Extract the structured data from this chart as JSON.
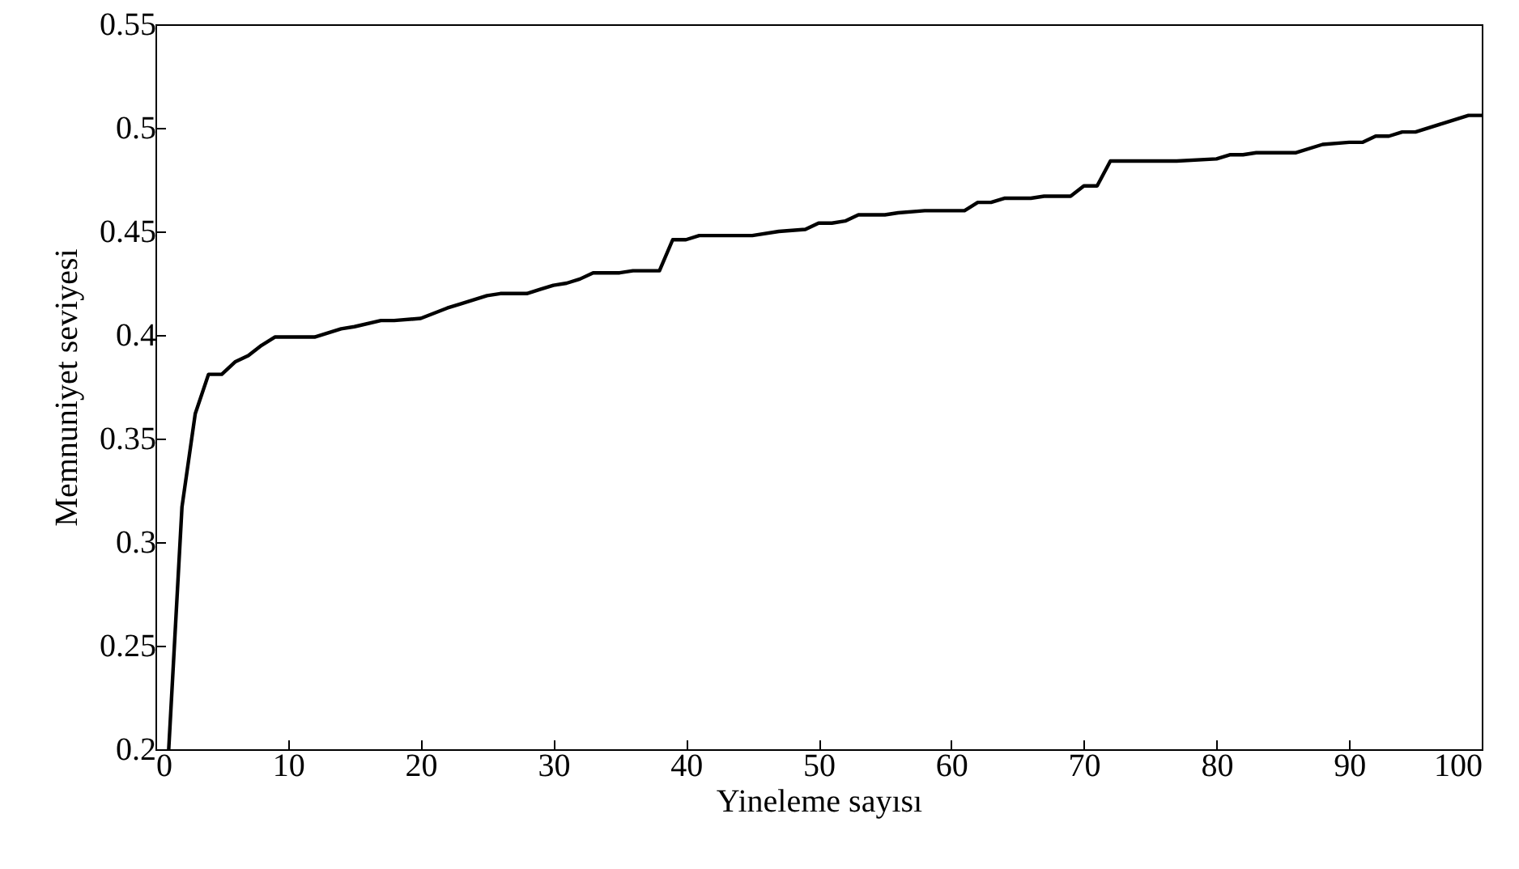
{
  "chart_data": {
    "type": "line",
    "xlabel": "Yineleme sayısı",
    "ylabel": "Memnuniyet seviyesi",
    "x": [
      1,
      2,
      3,
      4,
      5,
      6,
      7,
      8,
      9,
      10,
      12,
      14,
      15,
      17,
      18,
      20,
      22,
      23,
      25,
      26,
      28,
      29,
      30,
      31,
      32,
      33,
      35,
      36,
      38,
      39,
      40,
      41,
      43,
      45,
      47,
      49,
      50,
      51,
      52,
      53,
      55,
      56,
      58,
      61,
      62,
      63,
      64,
      66,
      67,
      69,
      70,
      71,
      72,
      77,
      80,
      81,
      82,
      83,
      86,
      88,
      90,
      91,
      92,
      93,
      94,
      95,
      97,
      99,
      100
    ],
    "series": [
      {
        "color": "#000000",
        "values": [
          0.2,
          0.317,
          0.362,
          0.381,
          0.381,
          0.387,
          0.39,
          0.395,
          0.399,
          0.399,
          0.399,
          0.403,
          0.404,
          0.407,
          0.407,
          0.408,
          0.413,
          0.415,
          0.419,
          0.42,
          0.42,
          0.422,
          0.424,
          0.425,
          0.427,
          0.43,
          0.43,
          0.431,
          0.431,
          0.446,
          0.446,
          0.448,
          0.448,
          0.448,
          0.45,
          0.451,
          0.454,
          0.454,
          0.455,
          0.458,
          0.458,
          0.459,
          0.46,
          0.46,
          0.464,
          0.464,
          0.466,
          0.466,
          0.467,
          0.467,
          0.472,
          0.472,
          0.484,
          0.484,
          0.485,
          0.487,
          0.487,
          0.488,
          0.488,
          0.492,
          0.493,
          0.493,
          0.496,
          0.496,
          0.498,
          0.498,
          0.502,
          0.506,
          0.506
        ]
      }
    ],
    "xlim": [
      0,
      100
    ],
    "xticks": [
      0,
      10,
      20,
      30,
      40,
      50,
      60,
      70,
      80,
      90,
      100
    ],
    "ylim": [
      0.2,
      0.55
    ],
    "yticks": [
      0.2,
      0.25,
      0.3,
      0.35,
      0.4,
      0.45,
      0.5,
      0.55
    ],
    "grid": false,
    "marker": "none",
    "line_style": "solid"
  }
}
